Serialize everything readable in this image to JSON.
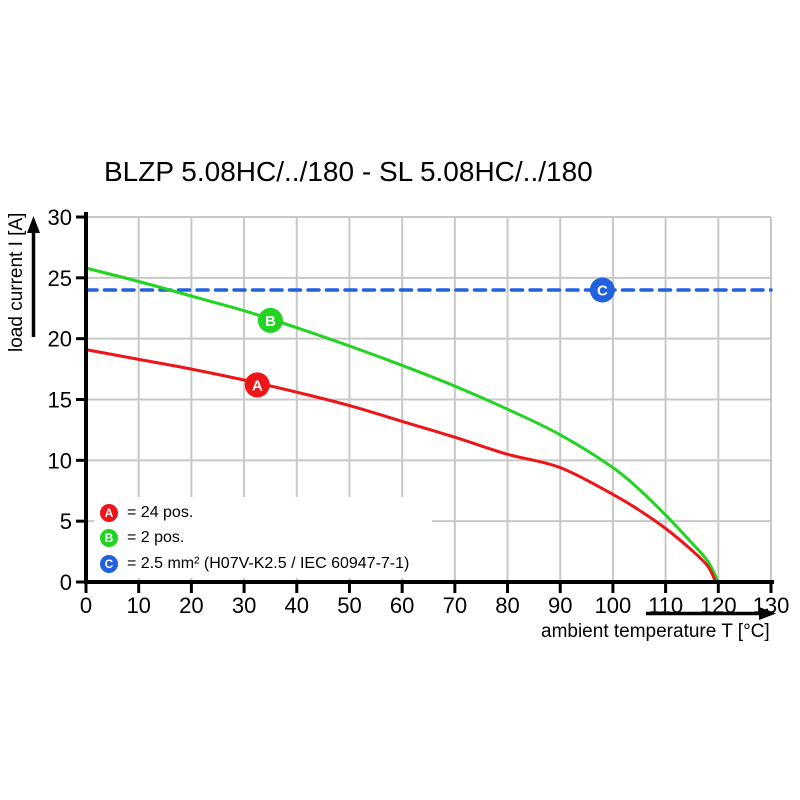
{
  "chart_data": {
    "type": "line",
    "title": "BLZP 5.08HC/../180 - SL 5.08HC/../180",
    "xlabel": "ambient temperature T [°C]",
    "ylabel": "load current I [A]",
    "xlim": [
      0,
      130
    ],
    "ylim": [
      0,
      30
    ],
    "x_ticks": [
      0,
      10,
      20,
      30,
      40,
      50,
      60,
      70,
      80,
      90,
      100,
      110,
      120,
      130
    ],
    "y_ticks": [
      0,
      5,
      10,
      15,
      20,
      25,
      30
    ],
    "grid": true,
    "grid_color": "#c8c8c8",
    "background": "#ffffff",
    "axis_color": "#000000",
    "legend_position": "bottom-left-inside",
    "series": [
      {
        "name": "B",
        "legend_label": "= 2 pos.",
        "color": "#22d422",
        "line_style": "solid",
        "marker": {
          "letter": "B",
          "x": 35,
          "y": 21.5
        },
        "points": [
          [
            0,
            25.8
          ],
          [
            10,
            24.7
          ],
          [
            20,
            23.5
          ],
          [
            30,
            22.3
          ],
          [
            40,
            20.9
          ],
          [
            50,
            19.4
          ],
          [
            60,
            17.8
          ],
          [
            70,
            16.1
          ],
          [
            80,
            14.2
          ],
          [
            90,
            12.1
          ],
          [
            100,
            9.4
          ],
          [
            105,
            7.6
          ],
          [
            110,
            5.5
          ],
          [
            115,
            3.2
          ],
          [
            118,
            1.7
          ],
          [
            120,
            0
          ]
        ]
      },
      {
        "name": "A",
        "legend_label": "= 24 pos.",
        "color": "#ee1418",
        "line_style": "solid",
        "marker": {
          "letter": "A",
          "x": 32.5,
          "y": 16.2
        },
        "points": [
          [
            0,
            19.1
          ],
          [
            10,
            18.3
          ],
          [
            20,
            17.5
          ],
          [
            30,
            16.6
          ],
          [
            40,
            15.6
          ],
          [
            50,
            14.5
          ],
          [
            60,
            13.2
          ],
          [
            70,
            11.9
          ],
          [
            80,
            10.5
          ],
          [
            90,
            9.4
          ],
          [
            100,
            7.2
          ],
          [
            105,
            5.9
          ],
          [
            110,
            4.4
          ],
          [
            115,
            2.6
          ],
          [
            118,
            1.3
          ],
          [
            119.5,
            0
          ]
        ]
      },
      {
        "name": "C",
        "legend_label": "= 2.5 mm² (H07V-K2.5 / IEC 60947-7-1)",
        "color": "#2161e0",
        "line_style": "dashed",
        "marker": {
          "letter": "C",
          "x": 98,
          "y": 24
        },
        "points": [
          [
            0,
            24
          ],
          [
            130,
            24
          ]
        ]
      }
    ]
  },
  "legend": {
    "items": [
      {
        "letter": "A",
        "label": "= 24 pos."
      },
      {
        "letter": "B",
        "label": "= 2 pos."
      },
      {
        "letter": "C",
        "label": "= 2.5 mm² (H07V-K2.5 / IEC 60947-7-1)"
      }
    ]
  }
}
